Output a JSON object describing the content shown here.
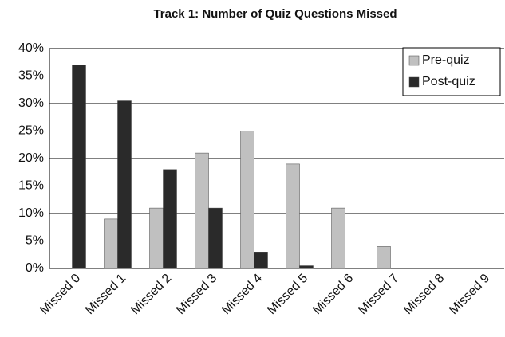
{
  "chart_data": {
    "type": "bar",
    "title": "Track 1: Number of Quiz Questions Missed",
    "categories": [
      "Missed 0",
      "Missed 1",
      "Missed 2",
      "Missed 3",
      "Missed 4",
      "Missed 5",
      "Missed 6",
      "Missed 7",
      "Missed 8",
      "Missed 9"
    ],
    "series": [
      {
        "name": "Pre-quiz",
        "color": "#c0c0c0",
        "values": [
          0,
          9,
          11,
          21,
          25,
          19,
          11,
          4,
          0,
          0
        ]
      },
      {
        "name": "Post-quiz",
        "color": "#2a2a2a",
        "values": [
          37,
          30.5,
          18,
          11,
          3,
          0.5,
          0,
          0,
          0,
          0
        ]
      }
    ],
    "ylim": [
      0,
      40
    ],
    "yticks": [
      {
        "value": 0,
        "label": "0%"
      },
      {
        "value": 5,
        "label": "5%"
      },
      {
        "value": 10,
        "label": "10%"
      },
      {
        "value": 15,
        "label": "15%"
      },
      {
        "value": 20,
        "label": "20%"
      },
      {
        "value": 25,
        "label": "25%"
      },
      {
        "value": 30,
        "label": "30%"
      },
      {
        "value": 35,
        "label": "35%"
      },
      {
        "value": 40,
        "label": "40%"
      }
    ],
    "grid": true,
    "legend": "top-right"
  }
}
